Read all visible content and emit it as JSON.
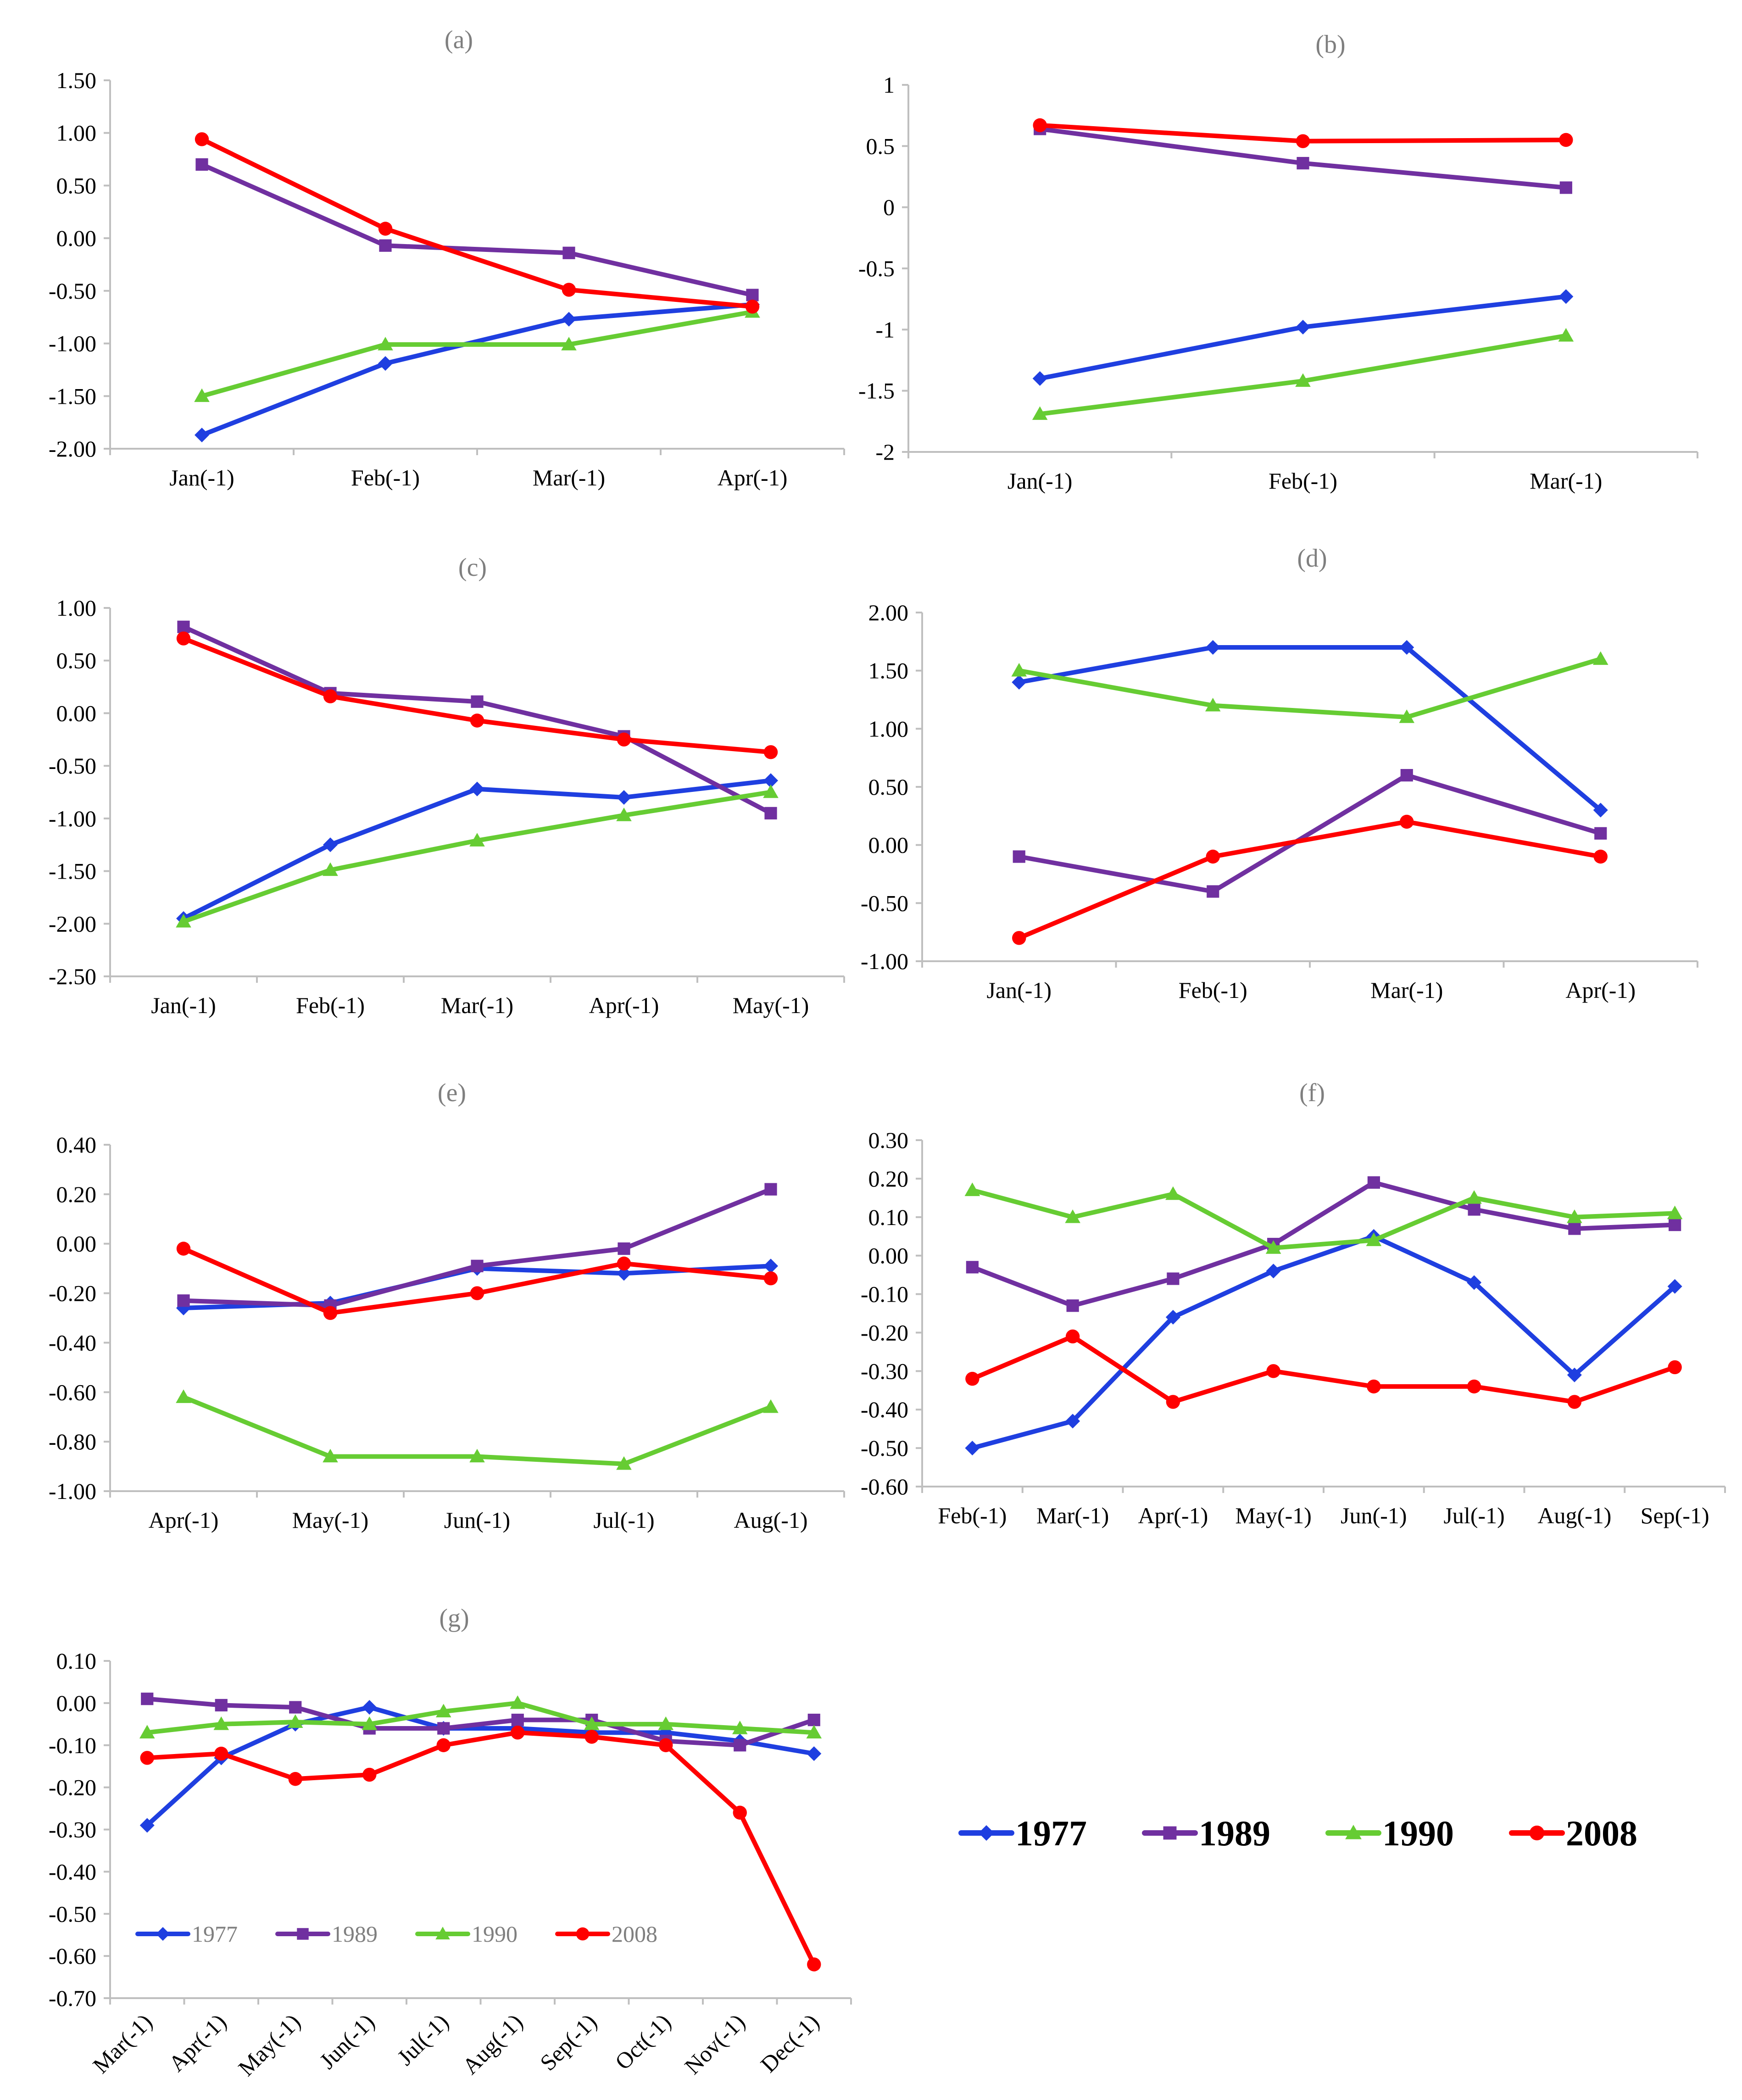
{
  "series_colors": {
    "1977": "#1f3fe0",
    "1989": "#7030a0",
    "1990": "#66cc33",
    "2008": "#ff0000"
  },
  "series_markers": {
    "1977": "diamond",
    "1989": "square",
    "1990": "triangle",
    "2008": "circle"
  },
  "legend": {
    "entries": [
      "1977",
      "1989",
      "1990",
      "2008"
    ]
  },
  "chart_data": [
    {
      "type": "line",
      "panel": "(a)",
      "categories": [
        "Jan(-1)",
        "Feb(-1)",
        "Mar(-1)",
        "Apr(-1)"
      ],
      "ylim": [
        -2.0,
        1.5
      ],
      "yticks": [
        1.5,
        1.0,
        0.5,
        0.0,
        -0.5,
        -1.0,
        -1.5,
        -2.0
      ],
      "ydecimals": 2,
      "series": [
        {
          "name": "1977",
          "values": [
            -1.87,
            -1.19,
            -0.77,
            -0.63
          ]
        },
        {
          "name": "1989",
          "values": [
            0.7,
            -0.07,
            -0.14,
            -0.54
          ]
        },
        {
          "name": "1990",
          "values": [
            -1.5,
            -1.01,
            -1.01,
            -0.7
          ]
        },
        {
          "name": "2008",
          "values": [
            0.94,
            0.09,
            -0.49,
            -0.65
          ]
        }
      ]
    },
    {
      "type": "line",
      "panel": "(b)",
      "categories": [
        "Jan(-1)",
        "Feb(-1)",
        "Mar(-1)"
      ],
      "ylim": [
        -2,
        1
      ],
      "yticks": [
        1,
        0.5,
        0,
        -0.5,
        -1,
        -1.5,
        -2
      ],
      "ydecimals": -1,
      "series": [
        {
          "name": "1977",
          "values": [
            -1.4,
            -0.98,
            -0.73
          ]
        },
        {
          "name": "1989",
          "values": [
            0.64,
            0.36,
            0.16
          ]
        },
        {
          "name": "1990",
          "values": [
            -1.69,
            -1.42,
            -1.05
          ]
        },
        {
          "name": "2008",
          "values": [
            0.67,
            0.54,
            0.55
          ]
        }
      ]
    },
    {
      "type": "line",
      "panel": "(c)",
      "categories": [
        "Jan(-1)",
        "Feb(-1)",
        "Mar(-1)",
        "Apr(-1)",
        "May(-1)"
      ],
      "ylim": [
        -2.5,
        1.0
      ],
      "yticks": [
        1.0,
        0.5,
        0.0,
        -0.5,
        -1.0,
        -1.5,
        -2.0,
        -2.5
      ],
      "ydecimals": 2,
      "series": [
        {
          "name": "1977",
          "values": [
            -1.95,
            -1.25,
            -0.72,
            -0.8,
            -0.64
          ]
        },
        {
          "name": "1989",
          "values": [
            0.82,
            0.19,
            0.11,
            -0.22,
            -0.95
          ]
        },
        {
          "name": "1990",
          "values": [
            -1.98,
            -1.49,
            -1.21,
            -0.97,
            -0.75
          ]
        },
        {
          "name": "2008",
          "values": [
            0.71,
            0.16,
            -0.07,
            -0.25,
            -0.37
          ]
        }
      ]
    },
    {
      "type": "line",
      "panel": "(d)",
      "categories": [
        "Jan(-1)",
        "Feb(-1)",
        "Mar(-1)",
        "Apr(-1)"
      ],
      "ylim": [
        -1.0,
        2.0
      ],
      "yticks": [
        2.0,
        1.5,
        1.0,
        0.5,
        0.0,
        -0.5,
        -1.0
      ],
      "ydecimals": 2,
      "series": [
        {
          "name": "1977",
          "values": [
            1.4,
            1.7,
            1.7,
            0.3
          ]
        },
        {
          "name": "1989",
          "values": [
            -0.1,
            -0.4,
            0.6,
            0.1
          ]
        },
        {
          "name": "1990",
          "values": [
            1.5,
            1.2,
            1.1,
            1.6
          ]
        },
        {
          "name": "2008",
          "values": [
            -0.8,
            -0.1,
            0.2,
            -0.1
          ]
        }
      ]
    },
    {
      "type": "line",
      "panel": "(e)",
      "categories": [
        "Apr(-1)",
        "May(-1)",
        "Jun(-1)",
        "Jul(-1)",
        "Aug(-1)"
      ],
      "ylim": [
        -1.0,
        0.4
      ],
      "yticks": [
        0.4,
        0.2,
        0.0,
        -0.2,
        -0.4,
        -0.6,
        -0.8,
        -1.0
      ],
      "ydecimals": 2,
      "series": [
        {
          "name": "1977",
          "values": [
            -0.26,
            -0.24,
            -0.1,
            -0.12,
            -0.09
          ]
        },
        {
          "name": "1989",
          "values": [
            -0.23,
            -0.25,
            -0.09,
            -0.02,
            0.22
          ]
        },
        {
          "name": "1990",
          "values": [
            -0.62,
            -0.86,
            -0.86,
            -0.89,
            -0.66
          ]
        },
        {
          "name": "2008",
          "values": [
            -0.02,
            -0.28,
            -0.2,
            -0.08,
            -0.14
          ]
        }
      ]
    },
    {
      "type": "line",
      "panel": "(f)",
      "categories": [
        "Feb(-1)",
        "Mar(-1)",
        "Apr(-1)",
        "May(-1)",
        "Jun(-1)",
        "Jul(-1)",
        "Aug(-1)",
        "Sep(-1)"
      ],
      "ylim": [
        -0.6,
        0.3
      ],
      "yticks": [
        0.3,
        0.2,
        0.1,
        0.0,
        -0.1,
        -0.2,
        -0.3,
        -0.4,
        -0.5,
        -0.6
      ],
      "ydecimals": 2,
      "series": [
        {
          "name": "1977",
          "values": [
            -0.5,
            -0.43,
            -0.16,
            -0.04,
            0.05,
            -0.07,
            -0.31,
            -0.08
          ]
        },
        {
          "name": "1989",
          "values": [
            -0.03,
            -0.13,
            -0.06,
            0.03,
            0.19,
            0.12,
            0.07,
            0.08
          ]
        },
        {
          "name": "1990",
          "values": [
            0.17,
            0.1,
            0.16,
            0.02,
            0.04,
            0.15,
            0.1,
            0.11
          ]
        },
        {
          "name": "2008",
          "values": [
            -0.32,
            -0.21,
            -0.38,
            -0.3,
            -0.34,
            -0.34,
            -0.38,
            -0.29
          ]
        }
      ]
    },
    {
      "type": "line",
      "panel": "(g)",
      "categories": [
        "Mar(-1)",
        "Apr(-1)",
        "May(-1)",
        "Jun(-1)",
        "Jul(-1)",
        "Aug(-1)",
        "Sep(-1)",
        "Oct(-1)",
        "Nov(-1)",
        "Dec(-1)"
      ],
      "ylim": [
        -0.7,
        0.1
      ],
      "yticks": [
        0.1,
        0.0,
        -0.1,
        -0.2,
        -0.3,
        -0.4,
        -0.5,
        -0.6,
        -0.7
      ],
      "ydecimals": 2,
      "series": [
        {
          "name": "1977",
          "values": [
            -0.29,
            -0.13,
            -0.05,
            -0.01,
            -0.06,
            -0.06,
            -0.07,
            -0.07,
            -0.09,
            -0.12
          ]
        },
        {
          "name": "1989",
          "values": [
            0.01,
            -0.005,
            -0.01,
            -0.06,
            -0.06,
            -0.04,
            -0.04,
            -0.09,
            -0.1,
            -0.04
          ]
        },
        {
          "name": "1990",
          "values": [
            -0.07,
            -0.05,
            -0.045,
            -0.05,
            -0.02,
            0.0,
            -0.05,
            -0.05,
            -0.06,
            -0.07
          ]
        },
        {
          "name": "2008",
          "values": [
            -0.13,
            -0.12,
            -0.18,
            -0.17,
            -0.1,
            -0.07,
            -0.08,
            -0.1,
            -0.26,
            -0.62
          ]
        }
      ]
    }
  ]
}
